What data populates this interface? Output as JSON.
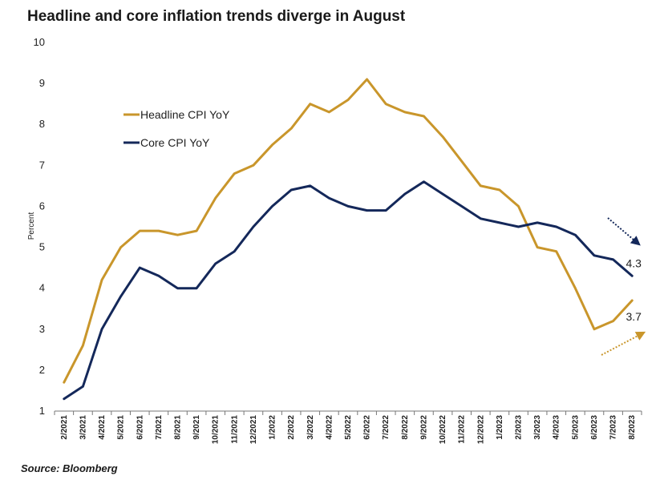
{
  "chart_data": {
    "type": "line",
    "title": "Headline and core inflation trends diverge in August",
    "ylabel": "Percent",
    "xlabel": "",
    "ylim": [
      1,
      10
    ],
    "yticks": [
      1,
      2,
      3,
      4,
      5,
      6,
      7,
      8,
      9,
      10
    ],
    "grid": false,
    "legend_position": "upper-left",
    "categories": [
      "2/2021",
      "3/2021",
      "4/2021",
      "5/2021",
      "6/2021",
      "7/2021",
      "8/2021",
      "9/2021",
      "10/2021",
      "11/2021",
      "12/2021",
      "1/2022",
      "2/2022",
      "3/2022",
      "4/2022",
      "5/2022",
      "6/2022",
      "7/2022",
      "8/2022",
      "9/2022",
      "10/2022",
      "11/2022",
      "12/2022",
      "1/2023",
      "2/2023",
      "3/2023",
      "4/2023",
      "5/2023",
      "6/2023",
      "7/2023",
      "8/2023"
    ],
    "series": [
      {
        "name": "Headline CPI YoY",
        "color": "#C9962B",
        "values": [
          1.7,
          2.6,
          4.2,
          5.0,
          5.4,
          5.4,
          5.3,
          5.4,
          6.2,
          6.8,
          7.0,
          7.5,
          7.9,
          8.5,
          8.3,
          8.6,
          9.1,
          8.5,
          8.3,
          8.2,
          7.7,
          7.1,
          6.5,
          6.4,
          6.0,
          5.0,
          4.9,
          4.0,
          3.0,
          3.2,
          3.7
        ],
        "end_label": "3.7",
        "trend_arrow": "up"
      },
      {
        "name": "Core CPI YoY",
        "color": "#14285A",
        "values": [
          1.3,
          1.6,
          3.0,
          3.8,
          4.5,
          4.3,
          4.0,
          4.0,
          4.6,
          4.9,
          5.5,
          6.0,
          6.4,
          6.5,
          6.2,
          6.0,
          5.9,
          5.9,
          6.3,
          6.6,
          6.3,
          6.0,
          5.7,
          5.6,
          5.5,
          5.6,
          5.5,
          5.3,
          4.8,
          4.7,
          4.3
        ],
        "end_label": "4.3",
        "trend_arrow": "down"
      }
    ]
  },
  "source": "Source: Bloomberg"
}
